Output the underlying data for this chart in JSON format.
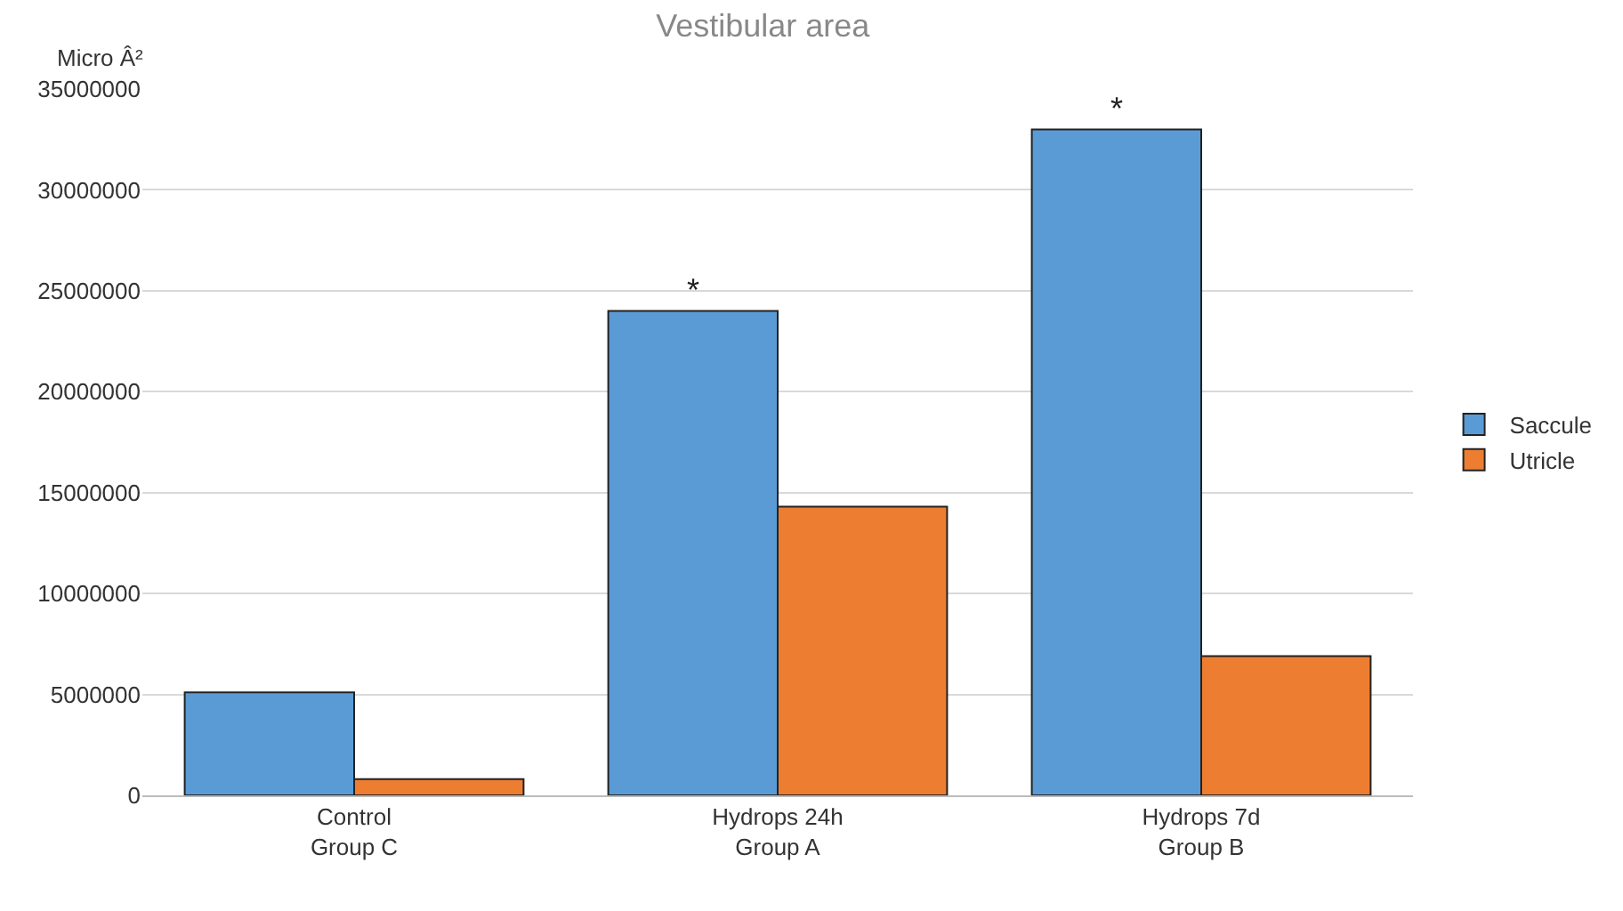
{
  "chart_data": {
    "type": "bar",
    "title": "Vestibular area",
    "ylabel": "Micro Â²",
    "categories": [
      "Control\nGroup C",
      "Hydrops 24h\nGroup A",
      "Hydrops 7d\nGroup B"
    ],
    "series": [
      {
        "name": "Saccule",
        "color": "#5b9bd5",
        "values": [
          5100000,
          24000000,
          33000000
        ]
      },
      {
        "name": "Utricle",
        "color": "#ed7d31",
        "values": [
          800000,
          14300000,
          6900000
        ]
      }
    ],
    "ylim": [
      0,
      35000000
    ],
    "yticks": [
      0,
      5000000,
      10000000,
      15000000,
      20000000,
      25000000,
      30000000,
      35000000
    ],
    "grid": "y",
    "legend": "right",
    "annotations": [
      {
        "text": "*",
        "x": "Hydrops 24h\nGroup A",
        "y": 24000000
      },
      {
        "text": "*",
        "x": "Hydrops 7d\nGroup B",
        "y": 33000000
      }
    ]
  }
}
